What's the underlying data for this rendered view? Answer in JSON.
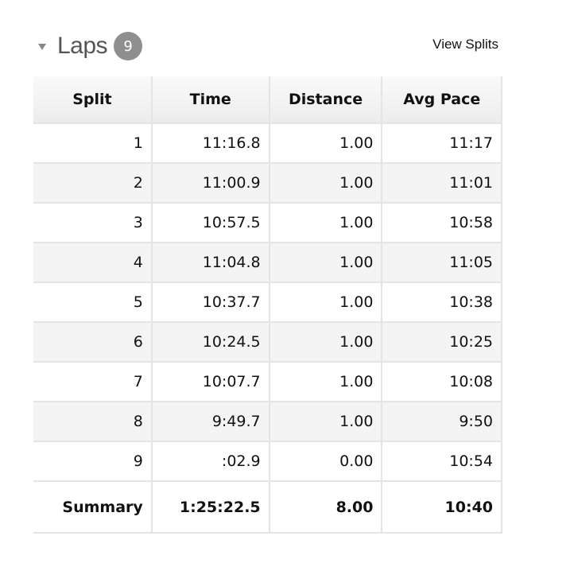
{
  "header": {
    "title": "Laps",
    "count": "9",
    "view_splits": "View Splits"
  },
  "columns": [
    "Split",
    "Time",
    "Distance",
    "Avg Pace"
  ],
  "rows": [
    [
      "1",
      "11:16.8",
      "1.00",
      "11:17"
    ],
    [
      "2",
      "11:00.9",
      "1.00",
      "11:01"
    ],
    [
      "3",
      "10:57.5",
      "1.00",
      "10:58"
    ],
    [
      "4",
      "11:04.8",
      "1.00",
      "11:05"
    ],
    [
      "5",
      "10:37.7",
      "1.00",
      "10:38"
    ],
    [
      "6",
      "10:24.5",
      "1.00",
      "10:25"
    ],
    [
      "7",
      "10:07.7",
      "1.00",
      "10:08"
    ],
    [
      "8",
      "9:49.7",
      "1.00",
      "9:50"
    ],
    [
      "9",
      ":02.9",
      "0.00",
      "10:54"
    ]
  ],
  "summary": [
    "Summary",
    "1:25:22.5",
    "8.00",
    "10:40"
  ]
}
